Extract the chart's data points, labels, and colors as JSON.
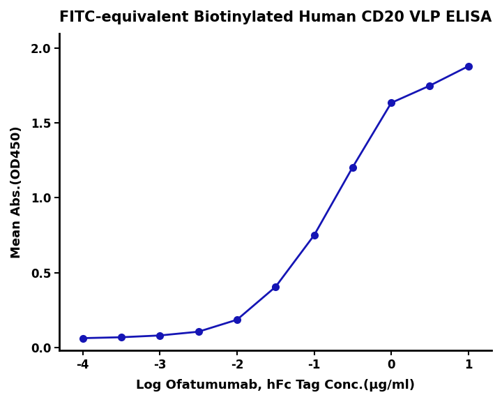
{
  "title": "FITC-equivalent Biotinylated Human CD20 VLP ELISA",
  "xlabel": "Log Ofatumumab, hFc Tag Conc.(μg/ml)",
  "ylabel": "Mean Abs.(OD450)",
  "x_data": [
    -4.0,
    -3.5,
    -3.0,
    -2.5,
    -2.0,
    -1.5,
    -1.0,
    -0.5,
    0.0,
    0.5,
    1.0
  ],
  "y_data": [
    0.062,
    0.068,
    0.08,
    0.105,
    0.185,
    0.405,
    0.75,
    1.205,
    1.635,
    1.75,
    1.88
  ],
  "xlim": [
    -4.3,
    1.3
  ],
  "ylim": [
    -0.02,
    2.1
  ],
  "xticks": [
    -4,
    -3,
    -2,
    -1,
    0,
    1
  ],
  "yticks": [
    0.0,
    0.5,
    1.0,
    1.5,
    2.0
  ],
  "line_color": "#1515b5",
  "marker_color": "#1515b5",
  "background_color": "#ffffff",
  "title_fontsize": 15,
  "label_fontsize": 13,
  "tick_fontsize": 12,
  "line_width": 2.0,
  "marker_size": 7
}
